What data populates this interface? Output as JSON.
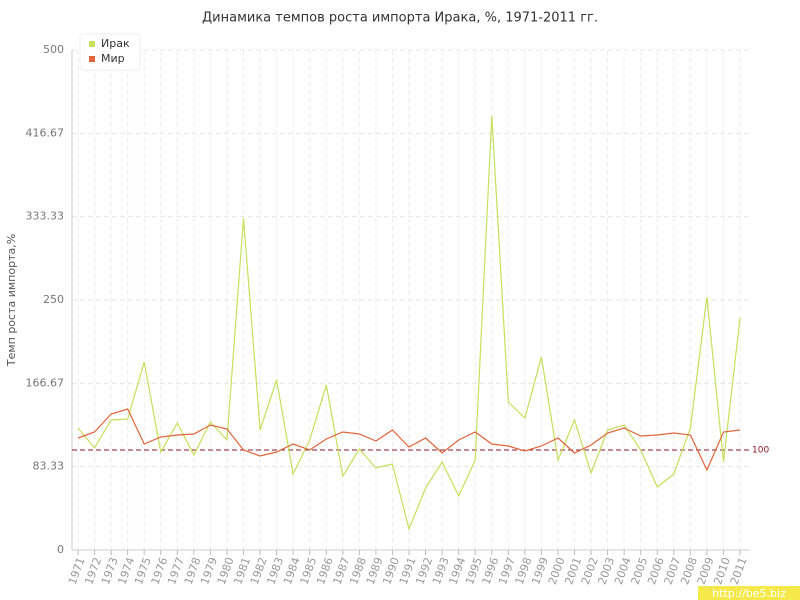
{
  "chart_data": {
    "type": "line",
    "title": "Динамика темпов роста импорта Ирака, %, 1971-2011 гг.",
    "y_label": "Темп роста импорта,%",
    "categories": [
      "1971",
      "1972",
      "1973",
      "1974",
      "1975",
      "1976",
      "1977",
      "1978",
      "1979",
      "1980",
      "1981",
      "1982",
      "1983",
      "1984",
      "1985",
      "1986",
      "1987",
      "1988",
      "1989",
      "1990",
      "1991",
      "1992",
      "1993",
      "1994",
      "1995",
      "1996",
      "1997",
      "1998",
      "1999",
      "2000",
      "2001",
      "2002",
      "2003",
      "2004",
      "2005",
      "2006",
      "2007",
      "2008",
      "2009",
      "2010",
      "2011"
    ],
    "series": [
      {
        "name": "Ирак",
        "color": "#c5e05a",
        "values": [
          122,
          102,
          130,
          131,
          188,
          98,
          127,
          95,
          128,
          110,
          332,
          120,
          170,
          76,
          110,
          165,
          74,
          101,
          82,
          86,
          21,
          62,
          88,
          54,
          90,
          434,
          148,
          132,
          193,
          90,
          130,
          77,
          120,
          125,
          100,
          63,
          76,
          122,
          253,
          88,
          232
        ]
      },
      {
        "name": "Мир",
        "color": "#e0643a",
        "values": [
          112,
          118,
          136,
          141,
          106,
          113,
          115,
          116,
          125,
          121,
          100,
          94,
          98,
          106,
          100,
          111,
          118,
          116,
          109,
          120,
          103,
          112,
          97,
          110,
          118,
          106,
          104,
          99,
          104,
          112,
          97,
          105,
          117,
          122,
          114,
          115,
          117,
          115,
          80,
          118,
          120
        ]
      }
    ],
    "ylim": [
      0,
      500
    ],
    "yticks": [
      0,
      83.33,
      166.67,
      250,
      333.33,
      416.67,
      500
    ],
    "grid": true,
    "reference_line": 100,
    "legend": "top-left",
    "watermark": "http://be5.biz"
  }
}
